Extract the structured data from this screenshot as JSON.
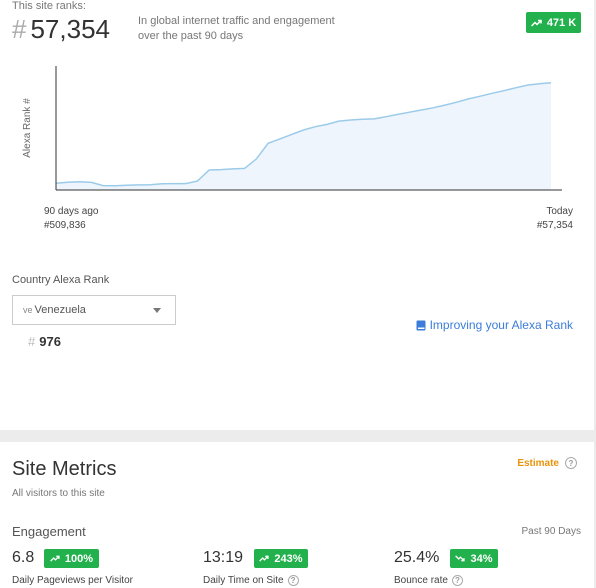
{
  "rank": {
    "label": "This site ranks:",
    "hash": "#",
    "value": "57,354",
    "description_line1": "In global internet traffic and engagement",
    "description_line2": "over the past 90 days",
    "change_badge": "471 K",
    "change_direction": "up",
    "badge_color": "#22b14c"
  },
  "chart_data": {
    "type": "area",
    "ylabel": "Alexa Rank #",
    "x_start_label": "90 days ago",
    "x_start_value": "#509,836",
    "x_end_label": "Today",
    "x_end_value": "#57,354",
    "y_axis": "inverted",
    "series": [
      {
        "values": [
          509836,
          505000,
          503000,
          506000,
          520000,
          521000,
          519000,
          517000,
          516000,
          512000,
          511000,
          511000,
          500000,
          450000,
          448000,
          445000,
          443000,
          400000,
          330000,
          310000,
          290000,
          270000,
          255000,
          245000,
          230000,
          225000,
          222000,
          220000,
          210000,
          200000,
          190000,
          180000,
          170000,
          158000,
          145000,
          130000,
          118000,
          105000,
          93000,
          80000,
          68000,
          62000,
          57354
        ]
      }
    ],
    "line_color": "#9ccbea",
    "fill_color": "#eef5fc"
  },
  "country": {
    "label": "Country Alexa Rank",
    "selected": "Venezuela",
    "flag_code": "ve",
    "hash": "#",
    "rank": "976"
  },
  "improve_link": "Improving your Alexa Rank",
  "metrics": {
    "title": "Site Metrics",
    "subtitle": "All visitors to this site",
    "estimate": "Estimate",
    "section": "Engagement",
    "period": "Past 90 Days",
    "items": [
      {
        "value": "6.8",
        "change": "100%",
        "direction": "up",
        "label": "Daily Pageviews per Visitor"
      },
      {
        "value": "13:19",
        "change": "243%",
        "direction": "up",
        "label": "Daily Time on Site"
      },
      {
        "value": "25.4%",
        "change": "34%",
        "direction": "down",
        "label": "Bounce rate"
      }
    ]
  }
}
